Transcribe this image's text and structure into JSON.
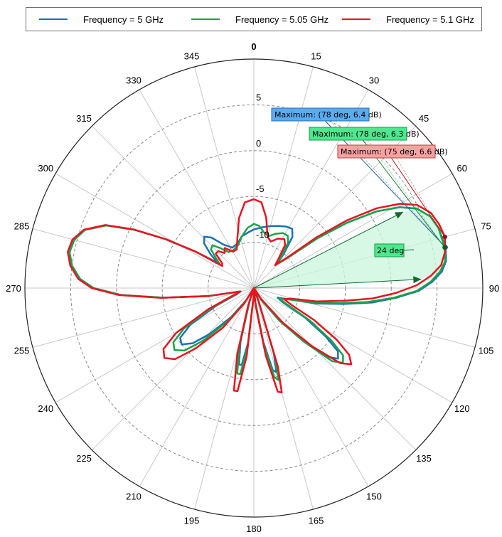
{
  "legend": {
    "items": [
      {
        "label": "Frequency = 5 GHz",
        "color": "#1F6FB5"
      },
      {
        "label": "Frequency = 5.05 GHz",
        "color": "#1AA34A"
      },
      {
        "label": "Frequency = 5.1 GHz",
        "color": "#E8141E"
      }
    ]
  },
  "annotations": {
    "max_labels": [
      {
        "text": "Maximum: (78 deg, 6.4 dB)",
        "bg": "#5AABF0",
        "border": "#2A6CB0",
        "line": "#1F5F9F"
      },
      {
        "text": "Maximum: (78 deg, 6.3 dB)",
        "bg": "#4DE88E",
        "border": "#1A9A4A",
        "line": "#16803C"
      },
      {
        "text": "Maximum: (75 deg, 6.6 dB)",
        "bg": "#F4A3A3",
        "border": "#C83A3A",
        "line": "#B01818"
      }
    ],
    "beamwidth_label": "24 deg"
  },
  "chart_data": {
    "type": "polar-line",
    "title": "",
    "angle_unit": "deg",
    "angle_ticks": [
      0,
      15,
      30,
      45,
      60,
      75,
      90,
      105,
      120,
      135,
      150,
      165,
      180,
      195,
      210,
      225,
      240,
      255,
      270,
      285,
      300,
      315,
      330,
      345
    ],
    "angle_direction": "clockwise",
    "angle_zero": "top",
    "radial_unit": "dB",
    "radial_range": [
      -15,
      10
    ],
    "radial_ticks": [
      -10,
      -5,
      0,
      5
    ],
    "grid": true,
    "legend_position": "top",
    "series": [
      {
        "name": "Frequency = 5 GHz",
        "color": "#1F6FB5",
        "maximum": {
          "angle": 78,
          "value": 6.4
        },
        "points": [
          [
            0,
            -8.6
          ],
          [
            8,
            -8.3
          ],
          [
            15,
            -8.0
          ],
          [
            22,
            -7.7
          ],
          [
            28,
            -7.4
          ],
          [
            33,
            -7.3
          ],
          [
            37,
            -8.0
          ],
          [
            41,
            -10.0
          ],
          [
            44,
            -11.3
          ],
          [
            48,
            -10.2
          ],
          [
            52,
            -6
          ],
          [
            55,
            -2.5
          ],
          [
            58,
            0.8
          ],
          [
            61,
            3.2
          ],
          [
            64,
            4.8
          ],
          [
            68,
            5.8
          ],
          [
            72,
            6.2
          ],
          [
            78,
            6.4
          ],
          [
            82,
            6.2
          ],
          [
            85,
            5.6
          ],
          [
            88,
            4.5
          ],
          [
            91,
            3.0
          ],
          [
            94,
            0.5
          ],
          [
            97,
            -2
          ],
          [
            100,
            -5
          ],
          [
            104,
            -8
          ],
          [
            108,
            -11
          ],
          [
            112,
            -12.2
          ],
          [
            116,
            -11.5
          ],
          [
            120,
            -8.5
          ],
          [
            124,
            -5.5
          ],
          [
            127,
            -3.5
          ],
          [
            130,
            -3.0
          ],
          [
            133,
            -4
          ],
          [
            137,
            -7.5
          ],
          [
            142,
            -11
          ],
          [
            148,
            -13.5
          ],
          [
            155,
            -15
          ],
          [
            160,
            -13.5
          ],
          [
            163,
            -7.5
          ],
          [
            165,
            -5.5
          ],
          [
            167,
            -5.8
          ],
          [
            170,
            -9
          ],
          [
            174,
            -13.5
          ],
          [
            178,
            -15
          ],
          [
            182,
            -14
          ],
          [
            186,
            -9
          ],
          [
            189,
            -6.5
          ],
          [
            191,
            -6.5
          ],
          [
            194,
            -9
          ],
          [
            198,
            -13.5
          ],
          [
            205,
            -15
          ],
          [
            212,
            -13.5
          ],
          [
            218,
            -11
          ],
          [
            224,
            -8
          ],
          [
            228,
            -6
          ],
          [
            232,
            -5
          ],
          [
            236,
            -5.3
          ],
          [
            240,
            -7
          ],
          [
            245,
            -10.5
          ],
          [
            250,
            -13
          ],
          [
            256,
            -13.5
          ],
          [
            260,
            -10
          ],
          [
            264,
            -5
          ],
          [
            267,
            -0.5
          ],
          [
            270,
            2.5
          ],
          [
            273,
            4.0
          ],
          [
            277,
            5.0
          ],
          [
            281,
            5.5
          ],
          [
            285,
            5.3
          ],
          [
            289,
            4.5
          ],
          [
            293,
            2.5
          ],
          [
            296,
            -0.5
          ],
          [
            299,
            -4
          ],
          [
            302,
            -7.5
          ],
          [
            305,
            -10.2
          ],
          [
            308,
            -9
          ],
          [
            312,
            -7.7
          ],
          [
            316,
            -7.2
          ],
          [
            320,
            -7.8
          ],
          [
            325,
            -9.2
          ],
          [
            332,
            -10
          ],
          [
            340,
            -9.8
          ],
          [
            347,
            -9.2
          ],
          [
            354,
            -8.9
          ],
          [
            360,
            -8.6
          ]
        ]
      },
      {
        "name": "Frequency = 5.05 GHz",
        "color": "#1AA34A",
        "maximum": {
          "angle": 78,
          "value": 6.3
        },
        "points": [
          [
            0,
            -8.0
          ],
          [
            5,
            -8.2
          ],
          [
            10,
            -8.8
          ],
          [
            16,
            -9.1
          ],
          [
            22,
            -8.6
          ],
          [
            28,
            -8.2
          ],
          [
            33,
            -8.2
          ],
          [
            37,
            -8.8
          ],
          [
            41,
            -10.4
          ],
          [
            44,
            -11.4
          ],
          [
            48,
            -10.2
          ],
          [
            52,
            -6.2
          ],
          [
            55,
            -2.6
          ],
          [
            58,
            0.8
          ],
          [
            61,
            3.2
          ],
          [
            64,
            4.8
          ],
          [
            68,
            5.8
          ],
          [
            72,
            6.2
          ],
          [
            78,
            6.3
          ],
          [
            82,
            6.1
          ],
          [
            85,
            5.4
          ],
          [
            88,
            4.3
          ],
          [
            91,
            2.8
          ],
          [
            94,
            0.3
          ],
          [
            97,
            -2.5
          ],
          [
            100,
            -5.5
          ],
          [
            104,
            -8.5
          ],
          [
            108,
            -11
          ],
          [
            112,
            -12
          ],
          [
            116,
            -11
          ],
          [
            120,
            -8
          ],
          [
            124,
            -4.8
          ],
          [
            127,
            -2.8
          ],
          [
            130,
            -2.3
          ],
          [
            133,
            -3.3
          ],
          [
            137,
            -7
          ],
          [
            142,
            -10.5
          ],
          [
            148,
            -13.5
          ],
          [
            155,
            -15
          ],
          [
            160,
            -13.5
          ],
          [
            163,
            -7
          ],
          [
            165,
            -4.6
          ],
          [
            167,
            -5.0
          ],
          [
            170,
            -8.5
          ],
          [
            174,
            -13.5
          ],
          [
            178,
            -15
          ],
          [
            182,
            -14
          ],
          [
            186,
            -8.5
          ],
          [
            189,
            -5.5
          ],
          [
            191,
            -5.5
          ],
          [
            194,
            -8.5
          ],
          [
            198,
            -13.5
          ],
          [
            205,
            -15
          ],
          [
            212,
            -13.5
          ],
          [
            218,
            -10.5
          ],
          [
            224,
            -7
          ],
          [
            228,
            -4.8
          ],
          [
            232,
            -4.0
          ],
          [
            236,
            -4.4
          ],
          [
            240,
            -6.2
          ],
          [
            245,
            -10
          ],
          [
            250,
            -12.8
          ],
          [
            256,
            -13.5
          ],
          [
            260,
            -10
          ],
          [
            264,
            -5
          ],
          [
            267,
            -0.5
          ],
          [
            270,
            2.5
          ],
          [
            273,
            4.0
          ],
          [
            277,
            5.0
          ],
          [
            281,
            5.5
          ],
          [
            285,
            5.3
          ],
          [
            289,
            4.5
          ],
          [
            293,
            2.5
          ],
          [
            296,
            -0.5
          ],
          [
            299,
            -4
          ],
          [
            302,
            -7.5
          ],
          [
            305,
            -10.5
          ],
          [
            308,
            -9.8
          ],
          [
            312,
            -8.7
          ],
          [
            316,
            -8.5
          ],
          [
            320,
            -9.3
          ],
          [
            325,
            -10.2
          ],
          [
            332,
            -10.3
          ],
          [
            340,
            -10
          ],
          [
            347,
            -9.2
          ],
          [
            354,
            -8.4
          ],
          [
            360,
            -8.0
          ]
        ]
      },
      {
        "name": "Frequency = 5.1 GHz",
        "color": "#E8141E",
        "maximum": {
          "angle": 75,
          "value": 6.6
        },
        "points": [
          [
            0,
            -5.3
          ],
          [
            5,
            -5.6
          ],
          [
            10,
            -7.2
          ],
          [
            15,
            -9.2
          ],
          [
            20,
            -9.6
          ],
          [
            26,
            -9.0
          ],
          [
            32,
            -8.7
          ],
          [
            36,
            -9.2
          ],
          [
            40,
            -10.8
          ],
          [
            43,
            -11.6
          ],
          [
            47,
            -10.4
          ],
          [
            51,
            -6.2
          ],
          [
            54,
            -2.4
          ],
          [
            57,
            1.0
          ],
          [
            60,
            3.4
          ],
          [
            63,
            5.0
          ],
          [
            67,
            6.0
          ],
          [
            71,
            6.4
          ],
          [
            75,
            6.6
          ],
          [
            79,
            6.3
          ],
          [
            83,
            5.6
          ],
          [
            86,
            4.4
          ],
          [
            89,
            2.8
          ],
          [
            92,
            0.5
          ],
          [
            95,
            -2
          ],
          [
            98,
            -5
          ],
          [
            102,
            -8
          ],
          [
            106,
            -10.8
          ],
          [
            110,
            -11.5
          ],
          [
            114,
            -10.5
          ],
          [
            118,
            -7.5
          ],
          [
            122,
            -4.3
          ],
          [
            125,
            -2.3
          ],
          [
            128,
            -1.5
          ],
          [
            131,
            -2.5
          ],
          [
            135,
            -6
          ],
          [
            140,
            -10
          ],
          [
            146,
            -13.5
          ],
          [
            155,
            -15
          ],
          [
            160,
            -13.5
          ],
          [
            163,
            -6
          ],
          [
            165,
            -3.2
          ],
          [
            167,
            -3.4
          ],
          [
            170,
            -7.5
          ],
          [
            174,
            -13
          ],
          [
            178,
            -15
          ],
          [
            182,
            -14
          ],
          [
            186,
            -7.5
          ],
          [
            189,
            -3.6
          ],
          [
            191,
            -3.6
          ],
          [
            194,
            -7.5
          ],
          [
            198,
            -13
          ],
          [
            205,
            -15
          ],
          [
            212,
            -13
          ],
          [
            218,
            -9.5
          ],
          [
            224,
            -5.8
          ],
          [
            228,
            -3.4
          ],
          [
            232,
            -2.6
          ],
          [
            236,
            -3.1
          ],
          [
            240,
            -5.2
          ],
          [
            245,
            -9.5
          ],
          [
            250,
            -12.5
          ],
          [
            256,
            -13.5
          ],
          [
            260,
            -10
          ],
          [
            264,
            -4.8
          ],
          [
            267,
            -0.3
          ],
          [
            270,
            2.7
          ],
          [
            273,
            4.2
          ],
          [
            277,
            5.2
          ],
          [
            281,
            5.7
          ],
          [
            285,
            5.5
          ],
          [
            289,
            4.6
          ],
          [
            293,
            2.6
          ],
          [
            296,
            -0.4
          ],
          [
            299,
            -4
          ],
          [
            302,
            -7.5
          ],
          [
            305,
            -10.8
          ],
          [
            308,
            -10.6
          ],
          [
            312,
            -9.4
          ],
          [
            316,
            -9.4
          ],
          [
            320,
            -10.0
          ],
          [
            324,
            -9.6
          ],
          [
            330,
            -10.4
          ],
          [
            336,
            -10.4
          ],
          [
            342,
            -9.2
          ],
          [
            348,
            -7.2
          ],
          [
            354,
            -5.6
          ],
          [
            360,
            -5.3
          ]
        ]
      }
    ],
    "annotations": [
      {
        "type": "maximum",
        "series": "Frequency = 5 GHz",
        "angle": 78,
        "value": 6.4,
        "text": "Maximum: (78 deg, 6.4 dB)"
      },
      {
        "type": "maximum",
        "series": "Frequency = 5.05 GHz",
        "angle": 78,
        "value": 6.3,
        "text": "Maximum: (78 deg, 6.3 dB)"
      },
      {
        "type": "maximum",
        "series": "Frequency = 5.1 GHz",
        "angle": 75,
        "value": 6.6,
        "text": "Maximum: (75 deg, 6.6 dB)"
      },
      {
        "type": "beamwidth",
        "series": "Frequency = 5.05 GHz",
        "from_angle": 63,
        "to_angle": 87,
        "value": 3.3,
        "text": "24 deg"
      }
    ]
  }
}
